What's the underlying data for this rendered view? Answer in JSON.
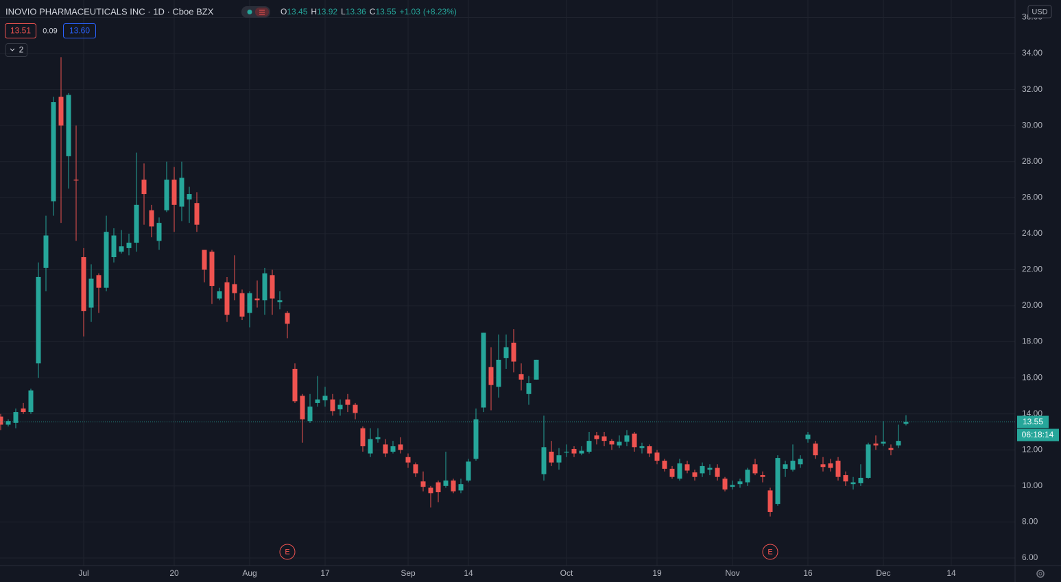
{
  "header": {
    "title": "INOVIO PHARMACEUTICALS INC · 1D · Cboe BZX",
    "ohlc_labels": [
      "O",
      "H",
      "L",
      "C"
    ],
    "change": "+1.03",
    "change_pct": "(+8.23%)",
    "bid": "13.51",
    "spread": "0.09",
    "ask": "13.60",
    "indicators": "2",
    "currency": "USD",
    "countdown": "06:18:14"
  },
  "chart_data": {
    "type": "candlestick",
    "categories": [
      null,
      null,
      null,
      null,
      null,
      null,
      null,
      null,
      null,
      null,
      null,
      "Jul",
      null,
      null,
      null,
      null,
      null,
      null,
      null,
      null,
      null,
      null,
      null,
      "20",
      null,
      null,
      null,
      null,
      null,
      null,
      null,
      null,
      null,
      "Aug",
      null,
      null,
      null,
      null,
      null,
      null,
      null,
      null,
      null,
      "17",
      null,
      null,
      null,
      null,
      null,
      null,
      null,
      null,
      null,
      null,
      "Sep",
      null,
      null,
      null,
      null,
      null,
      null,
      null,
      "14",
      null,
      null,
      null,
      null,
      null,
      null,
      null,
      null,
      null,
      null,
      null,
      null,
      "Oct",
      null,
      null,
      null,
      null,
      null,
      null,
      null,
      null,
      null,
      null,
      null,
      "19",
      null,
      null,
      null,
      null,
      null,
      null,
      null,
      null,
      null,
      "Nov",
      null,
      null,
      null,
      null,
      null,
      null,
      null,
      null,
      null,
      "16",
      null,
      null,
      null,
      null,
      null,
      null,
      null,
      null,
      null,
      "Dec",
      null,
      null,
      null,
      null,
      null,
      null,
      null,
      null,
      "14",
      null,
      null,
      null,
      null,
      null,
      null,
      null,
      null
    ],
    "events": [
      null,
      null,
      null,
      null,
      null,
      null,
      null,
      null,
      null,
      null,
      null,
      null,
      null,
      null,
      null,
      null,
      null,
      null,
      null,
      null,
      null,
      null,
      null,
      null,
      null,
      null,
      null,
      null,
      null,
      null,
      null,
      null,
      null,
      null,
      null,
      null,
      null,
      null,
      "E",
      null,
      null,
      null,
      null,
      null,
      null,
      null,
      null,
      null,
      null,
      null,
      null,
      null,
      null,
      null,
      null,
      null,
      null,
      null,
      null,
      null,
      null,
      null,
      null,
      null,
      null,
      null,
      null,
      null,
      null,
      null,
      null,
      null,
      null,
      null,
      null,
      null,
      null,
      null,
      null,
      null,
      null,
      null,
      null,
      null,
      null,
      null,
      null,
      null,
      null,
      null,
      null,
      null,
      null,
      null,
      null,
      null,
      null,
      null,
      null,
      null,
      null,
      null,
      "E",
      null,
      null,
      null,
      null,
      null,
      null,
      null,
      null,
      null,
      null,
      null,
      null,
      null,
      null,
      null,
      null,
      null,
      null,
      null,
      null,
      null,
      null,
      null,
      null,
      null,
      null,
      null,
      null,
      null,
      null,
      null,
      null
    ],
    "series": [
      {
        "up_color": "#26a69a",
        "down_color": "#ef5350",
        "open": [
          13.85,
          13.4,
          13.5,
          14.3,
          14.1,
          16.8,
          22.1,
          25.8,
          31.6,
          28.3,
          27.0,
          22.7,
          19.9,
          21.7,
          21.0,
          22.7,
          23.0,
          23.2,
          23.5,
          27.0,
          25.3,
          23.6,
          25.3,
          27.0,
          25.5,
          25.9,
          25.7,
          23.1,
          23.0,
          20.4,
          21.3,
          21.2,
          20.7,
          19.6,
          20.4,
          20.3,
          21.7,
          20.2,
          19.6,
          16.5,
          15.0,
          13.6,
          14.6,
          14.75,
          14.8,
          14.25,
          14.8,
          14.5,
          13.2,
          11.8,
          12.6,
          12.3,
          11.9,
          12.3,
          11.6,
          11.2,
          10.25,
          9.9,
          10.2,
          10.0,
          10.3,
          9.75,
          10.3,
          11.5,
          14.35,
          16.6,
          15.5,
          17.1,
          17.95,
          16.2,
          15.1,
          15.9,
          10.65,
          11.9,
          11.3,
          11.85,
          12.05,
          11.8,
          11.9,
          12.8,
          12.75,
          12.5,
          12.25,
          12.45,
          12.9,
          12.1,
          12.2,
          11.85,
          11.4,
          10.95,
          10.4,
          11.2,
          10.75,
          10.7,
          10.9,
          11.0,
          10.4,
          9.95,
          10.1,
          10.2,
          11.2,
          10.6,
          9.75,
          9.0,
          10.95,
          10.9,
          11.2,
          12.6,
          12.35,
          11.2,
          11.25,
          11.4,
          10.6,
          10.1,
          10.15,
          10.45,
          12.35,
          12.35,
          12.1,
          12.25,
          13.45,
          null,
          null,
          null,
          null,
          null,
          null,
          null,
          null,
          null,
          null,
          null,
          null,
          null,
          null
        ],
        "high": [
          14.0,
          13.7,
          14.3,
          14.6,
          15.4,
          22.4,
          25.0,
          31.6,
          33.8,
          31.8,
          30.0,
          23.2,
          22.3,
          21.8,
          25.0,
          24.3,
          24.2,
          24.0,
          28.5,
          27.9,
          25.6,
          24.9,
          28.0,
          27.7,
          28.0,
          26.6,
          26.3,
          23.1,
          23.1,
          21.0,
          21.6,
          22.8,
          20.9,
          20.8,
          21.4,
          22.1,
          22.0,
          20.8,
          19.7,
          16.8,
          15.1,
          15.1,
          16.1,
          15.5,
          15.1,
          14.8,
          15.1,
          14.6,
          13.3,
          13.2,
          13.2,
          12.6,
          12.5,
          12.7,
          11.8,
          11.3,
          10.8,
          10.0,
          10.3,
          11.9,
          10.4,
          10.4,
          11.5,
          14.3,
          18.5,
          17.7,
          18.4,
          18.4,
          18.7,
          16.8,
          16.1,
          17.0,
          13.9,
          12.5,
          12.1,
          12.3,
          12.2,
          12.2,
          13.0,
          13.0,
          13.0,
          12.6,
          12.8,
          13.1,
          13.0,
          12.4,
          12.3,
          12.0,
          11.5,
          11.1,
          11.5,
          11.4,
          10.9,
          11.3,
          11.2,
          11.2,
          10.5,
          10.3,
          10.4,
          11.0,
          11.5,
          10.8,
          9.9,
          11.7,
          11.4,
          12.3,
          11.7,
          13.0,
          12.5,
          11.6,
          11.5,
          11.6,
          10.8,
          10.5,
          11.2,
          12.4,
          12.8,
          13.6,
          12.3,
          13.4,
          13.92,
          null,
          null,
          null,
          null,
          null,
          null,
          null,
          null,
          null,
          null,
          null,
          null,
          null,
          null
        ],
        "low": [
          13.1,
          13.3,
          13.2,
          14.0,
          14.0,
          16.0,
          20.8,
          25.0,
          24.6,
          26.5,
          23.6,
          18.3,
          19.1,
          19.6,
          20.8,
          22.4,
          22.9,
          22.8,
          23.0,
          24.5,
          23.8,
          23.1,
          25.2,
          24.1,
          24.7,
          24.6,
          24.1,
          21.3,
          20.1,
          20.3,
          19.1,
          20.3,
          19.2,
          18.8,
          19.9,
          19.5,
          19.5,
          19.8,
          18.2,
          14.6,
          12.4,
          13.5,
          14.4,
          14.4,
          13.9,
          13.9,
          14.1,
          13.7,
          11.9,
          11.6,
          12.4,
          11.6,
          11.8,
          11.8,
          11.0,
          10.5,
          9.7,
          8.8,
          9.1,
          9.9,
          9.6,
          9.6,
          10.2,
          11.4,
          14.1,
          14.2,
          14.9,
          16.5,
          16.3,
          15.3,
          14.5,
          15.9,
          10.3,
          11.1,
          10.9,
          11.6,
          11.6,
          11.7,
          11.8,
          12.3,
          12.2,
          12.0,
          12.1,
          12.2,
          11.9,
          11.8,
          11.6,
          11.2,
          10.8,
          10.4,
          10.3,
          10.7,
          10.3,
          10.5,
          10.6,
          10.3,
          9.7,
          9.8,
          9.9,
          10.0,
          10.6,
          10.2,
          8.3,
          8.9,
          10.5,
          10.8,
          11.0,
          12.4,
          11.5,
          10.8,
          10.8,
          10.3,
          10.0,
          9.8,
          10.0,
          10.4,
          12.0,
          12.2,
          11.7,
          12.1,
          13.36,
          null,
          null,
          null,
          null,
          null,
          null,
          null,
          null,
          null,
          null,
          null,
          null,
          null,
          null
        ],
        "close": [
          13.4,
          13.6,
          14.1,
          14.1,
          15.3,
          21.6,
          23.9,
          31.3,
          30.0,
          31.7,
          26.95,
          19.7,
          21.5,
          21.0,
          24.1,
          23.9,
          23.3,
          23.5,
          25.6,
          26.2,
          24.4,
          24.6,
          27.0,
          25.6,
          27.1,
          26.2,
          24.5,
          22.0,
          21.1,
          20.8,
          19.5,
          20.7,
          19.4,
          20.7,
          20.3,
          21.8,
          20.4,
          20.3,
          19.0,
          14.7,
          13.7,
          14.4,
          14.8,
          15.0,
          14.15,
          14.5,
          14.5,
          14.05,
          12.2,
          12.6,
          12.7,
          11.8,
          12.2,
          12.0,
          11.3,
          10.7,
          9.95,
          9.6,
          9.65,
          10.3,
          9.7,
          10.1,
          11.35,
          13.7,
          18.5,
          15.6,
          17.0,
          17.7,
          16.9,
          15.9,
          15.7,
          17.0,
          12.15,
          11.3,
          11.7,
          11.9,
          11.8,
          11.95,
          12.5,
          12.6,
          12.5,
          12.3,
          12.45,
          12.8,
          12.15,
          12.2,
          11.8,
          11.4,
          10.95,
          10.5,
          11.25,
          10.85,
          10.5,
          11.1,
          11.0,
          10.5,
          9.8,
          10.05,
          10.25,
          10.9,
          10.7,
          10.5,
          8.55,
          11.55,
          11.2,
          11.4,
          11.5,
          12.85,
          11.7,
          11.05,
          11.0,
          10.5,
          10.25,
          10.2,
          10.45,
          12.3,
          12.25,
          12.45,
          12.0,
          12.5,
          13.55,
          null,
          null,
          null,
          null,
          null,
          null,
          null,
          null,
          null,
          null,
          null,
          null,
          null,
          null
        ]
      }
    ],
    "ylim": [
      5.58,
      36.97
    ],
    "yticks": [
      {
        "value": 6,
        "label": "6.00"
      },
      {
        "value": 8,
        "label": "8.00"
      },
      {
        "value": 10,
        "label": "10.00"
      },
      {
        "value": 12,
        "label": "12.00"
      },
      {
        "value": 14,
        "label": "14.00"
      },
      {
        "value": 16,
        "label": "16.00"
      },
      {
        "value": 18,
        "label": "18.00"
      },
      {
        "value": 20,
        "label": "20.00"
      },
      {
        "value": 22,
        "label": "22.00"
      },
      {
        "value": 24,
        "label": "24.00"
      },
      {
        "value": 26,
        "label": "26.00"
      },
      {
        "value": 28,
        "label": "28.00"
      },
      {
        "value": 30,
        "label": "30.00"
      },
      {
        "value": 32,
        "label": "32.00"
      },
      {
        "value": 34,
        "label": "34.00"
      },
      {
        "value": 36,
        "label": "36.00"
      }
    ],
    "grid": true
  }
}
